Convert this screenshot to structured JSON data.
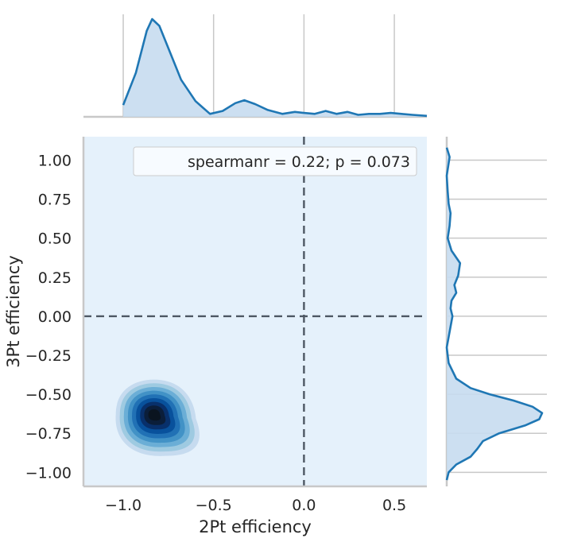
{
  "chart_data": {
    "type": "kde-jointplot",
    "xlabel": "2Pt efficiency",
    "ylabel": "3Pt efficiency",
    "annotation": "spearmanr = 0.22; p = 0.073",
    "xlim": [
      -1.22,
      0.68
    ],
    "ylim": [
      -1.09,
      1.15
    ],
    "xticks": [
      -1.0,
      -0.5,
      0.0,
      0.5
    ],
    "xtick_labels": [
      "−1.0",
      "−0.5",
      "0.0",
      "0.5"
    ],
    "yticks": [
      -1.0,
      -0.75,
      -0.5,
      -0.25,
      0.0,
      0.25,
      0.5,
      0.75,
      1.0
    ],
    "ytick_labels": [
      "−1.00",
      "−0.75",
      "−0.50",
      "−0.25",
      "0.00",
      "0.25",
      "0.50",
      "0.75",
      "1.00"
    ],
    "reference_lines": {
      "x": 0.0,
      "y": 0.0,
      "style": "dashed"
    },
    "joint_kde": {
      "peak": {
        "x": -0.83,
        "y": -0.63
      },
      "levels": 9,
      "colormap": "Blues",
      "background_color": "#e5f1fb"
    },
    "marginal_x_kde": {
      "x": [
        -1.0,
        -0.93,
        -0.87,
        -0.84,
        -0.8,
        -0.75,
        -0.68,
        -0.6,
        -0.52,
        -0.45,
        -0.38,
        -0.33,
        -0.27,
        -0.2,
        -0.12,
        -0.05,
        0.0,
        0.06,
        0.12,
        0.18,
        0.24,
        0.3,
        0.36,
        0.42,
        0.48,
        0.54,
        0.6,
        0.68
      ],
      "density": [
        0.12,
        0.45,
        0.88,
        1.0,
        0.93,
        0.7,
        0.38,
        0.16,
        0.03,
        0.06,
        0.14,
        0.17,
        0.13,
        0.07,
        0.03,
        0.05,
        0.04,
        0.03,
        0.06,
        0.03,
        0.05,
        0.02,
        0.03,
        0.03,
        0.04,
        0.03,
        0.02,
        0.01
      ]
    },
    "marginal_y_kde": {
      "y": [
        -1.05,
        -1.0,
        -0.95,
        -0.9,
        -0.85,
        -0.8,
        -0.75,
        -0.7,
        -0.66,
        -0.62,
        -0.58,
        -0.54,
        -0.5,
        -0.46,
        -0.4,
        -0.3,
        -0.2,
        -0.1,
        0.0,
        0.05,
        0.1,
        0.15,
        0.2,
        0.26,
        0.34,
        0.42,
        0.5,
        0.58,
        0.66,
        0.72,
        0.8,
        0.9,
        0.98,
        1.02,
        1.08
      ],
      "density": [
        0.0,
        0.02,
        0.1,
        0.25,
        0.32,
        0.38,
        0.55,
        0.82,
        0.97,
        1.0,
        0.9,
        0.7,
        0.45,
        0.25,
        0.1,
        0.02,
        0.0,
        0.03,
        0.06,
        0.04,
        0.05,
        0.1,
        0.08,
        0.12,
        0.14,
        0.05,
        0.01,
        0.03,
        0.04,
        0.02,
        0.01,
        0.0,
        0.02,
        0.03,
        0.0
      ]
    },
    "colors": {
      "line": "#1f77b4",
      "fill": "#c6dbef",
      "refline": "#4d5763",
      "grid": "#c8c8c8",
      "axis": "#c8c8c8"
    },
    "grid": true,
    "legend_location": "top-right"
  }
}
